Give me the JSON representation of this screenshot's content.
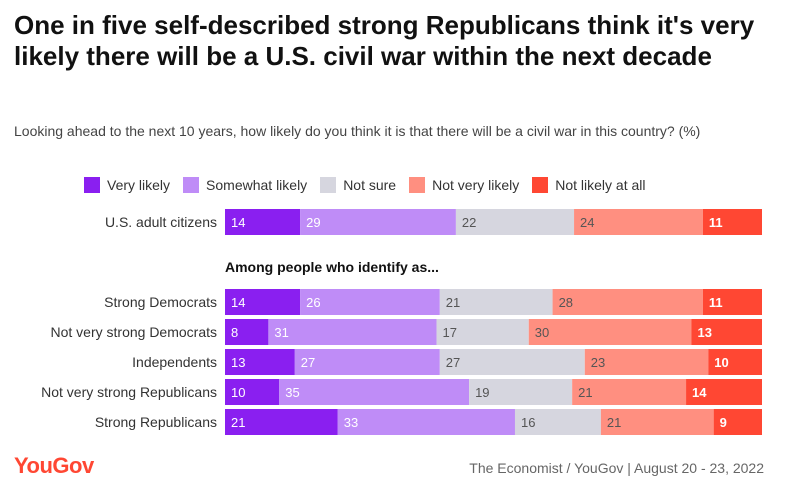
{
  "header": {
    "title": "One in five self-described strong Republicans think it's very likely there will be a U.S. civil war within the next decade",
    "subtitle": "Looking ahead to the next 10 years, how likely do you think it is that there will be a civil war in this country? (%)"
  },
  "footer": {
    "source": "The Economist / YouGov | August 20 - 23, 2022",
    "logo": "YouGov"
  },
  "chart_data": {
    "type": "bar",
    "orientation": "horizontal",
    "stacked": true,
    "categories": [
      "U.S. adult citizens",
      "Strong Democrats",
      "Not very strong Democrats",
      "Independents",
      "Not very strong Republicans",
      "Strong Republicans"
    ],
    "group_label": "Among people who identify as...",
    "series": [
      {
        "name": "Very likely",
        "color": "#8a1ff0",
        "values": [
          14,
          14,
          8,
          13,
          10,
          21
        ]
      },
      {
        "name": "Somewhat likely",
        "color": "#bf8cf7",
        "values": [
          29,
          26,
          31,
          27,
          35,
          33
        ]
      },
      {
        "name": "Not sure",
        "color": "#d6d6df",
        "values": [
          22,
          21,
          17,
          27,
          19,
          16
        ]
      },
      {
        "name": "Not very likely",
        "color": "#ff8f80",
        "values": [
          24,
          28,
          30,
          23,
          21,
          21
        ]
      },
      {
        "name": "Not likely at all",
        "color": "#ff4733",
        "values": [
          11,
          11,
          13,
          10,
          14,
          9
        ]
      }
    ],
    "legend_position": "top",
    "grid": false
  }
}
